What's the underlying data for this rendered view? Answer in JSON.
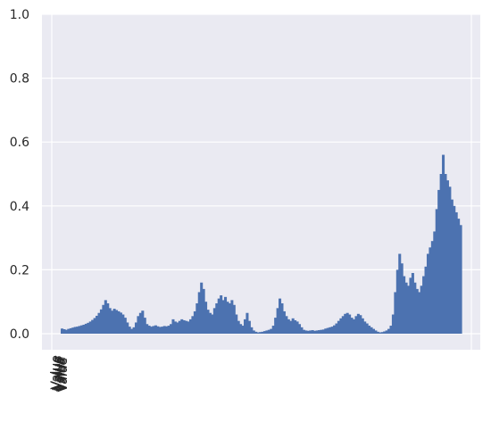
{
  "chart_data": {
    "type": "bar",
    "title": "",
    "xlabel": "",
    "ylabel": "",
    "ylim": [
      0.0,
      1.0
    ],
    "yticks": [
      "0.0",
      "0.2",
      "0.4",
      "0.6",
      "0.8",
      "1.0"
    ],
    "grid": true,
    "legend": "none",
    "background_color": "#eaeaf2",
    "bar_color": "#4c72b0",
    "x_tick_labels": [
      "Value",
      "Value",
      "Value",
      "Value",
      "Value",
      "Value"
    ],
    "series": [
      {
        "values": [
          0.016,
          0.014,
          0.012,
          0.015,
          0.017,
          0.019,
          0.021,
          0.022,
          0.024,
          0.026,
          0.028,
          0.031,
          0.034,
          0.038,
          0.043,
          0.049,
          0.056,
          0.065,
          0.076,
          0.09,
          0.105,
          0.095,
          0.08,
          0.072,
          0.078,
          0.074,
          0.07,
          0.066,
          0.06,
          0.05,
          0.035,
          0.022,
          0.015,
          0.02,
          0.035,
          0.055,
          0.065,
          0.072,
          0.05,
          0.03,
          0.025,
          0.022,
          0.024,
          0.026,
          0.023,
          0.021,
          0.022,
          0.024,
          0.023,
          0.025,
          0.03,
          0.045,
          0.038,
          0.035,
          0.04,
          0.045,
          0.042,
          0.04,
          0.038,
          0.045,
          0.055,
          0.07,
          0.095,
          0.13,
          0.16,
          0.14,
          0.1,
          0.075,
          0.065,
          0.06,
          0.08,
          0.095,
          0.11,
          0.12,
          0.105,
          0.115,
          0.1,
          0.095,
          0.105,
          0.09,
          0.06,
          0.04,
          0.03,
          0.025,
          0.045,
          0.065,
          0.04,
          0.02,
          0.01,
          0.006,
          0.004,
          0.005,
          0.006,
          0.008,
          0.01,
          0.012,
          0.015,
          0.025,
          0.05,
          0.08,
          0.11,
          0.095,
          0.07,
          0.055,
          0.045,
          0.04,
          0.048,
          0.042,
          0.038,
          0.03,
          0.02,
          0.012,
          0.01,
          0.009,
          0.01,
          0.011,
          0.009,
          0.01,
          0.011,
          0.012,
          0.013,
          0.016,
          0.018,
          0.02,
          0.022,
          0.026,
          0.032,
          0.04,
          0.048,
          0.055,
          0.062,
          0.065,
          0.06,
          0.05,
          0.045,
          0.055,
          0.062,
          0.058,
          0.048,
          0.038,
          0.032,
          0.025,
          0.02,
          0.015,
          0.01,
          0.006,
          0.004,
          0.005,
          0.007,
          0.01,
          0.015,
          0.025,
          0.06,
          0.13,
          0.2,
          0.25,
          0.22,
          0.18,
          0.16,
          0.15,
          0.175,
          0.19,
          0.16,
          0.14,
          0.13,
          0.15,
          0.18,
          0.21,
          0.25,
          0.27,
          0.29,
          0.32,
          0.39,
          0.45,
          0.5,
          0.56,
          0.5,
          0.48,
          0.46,
          0.42,
          0.4,
          0.38,
          0.36,
          0.34
        ]
      }
    ]
  }
}
